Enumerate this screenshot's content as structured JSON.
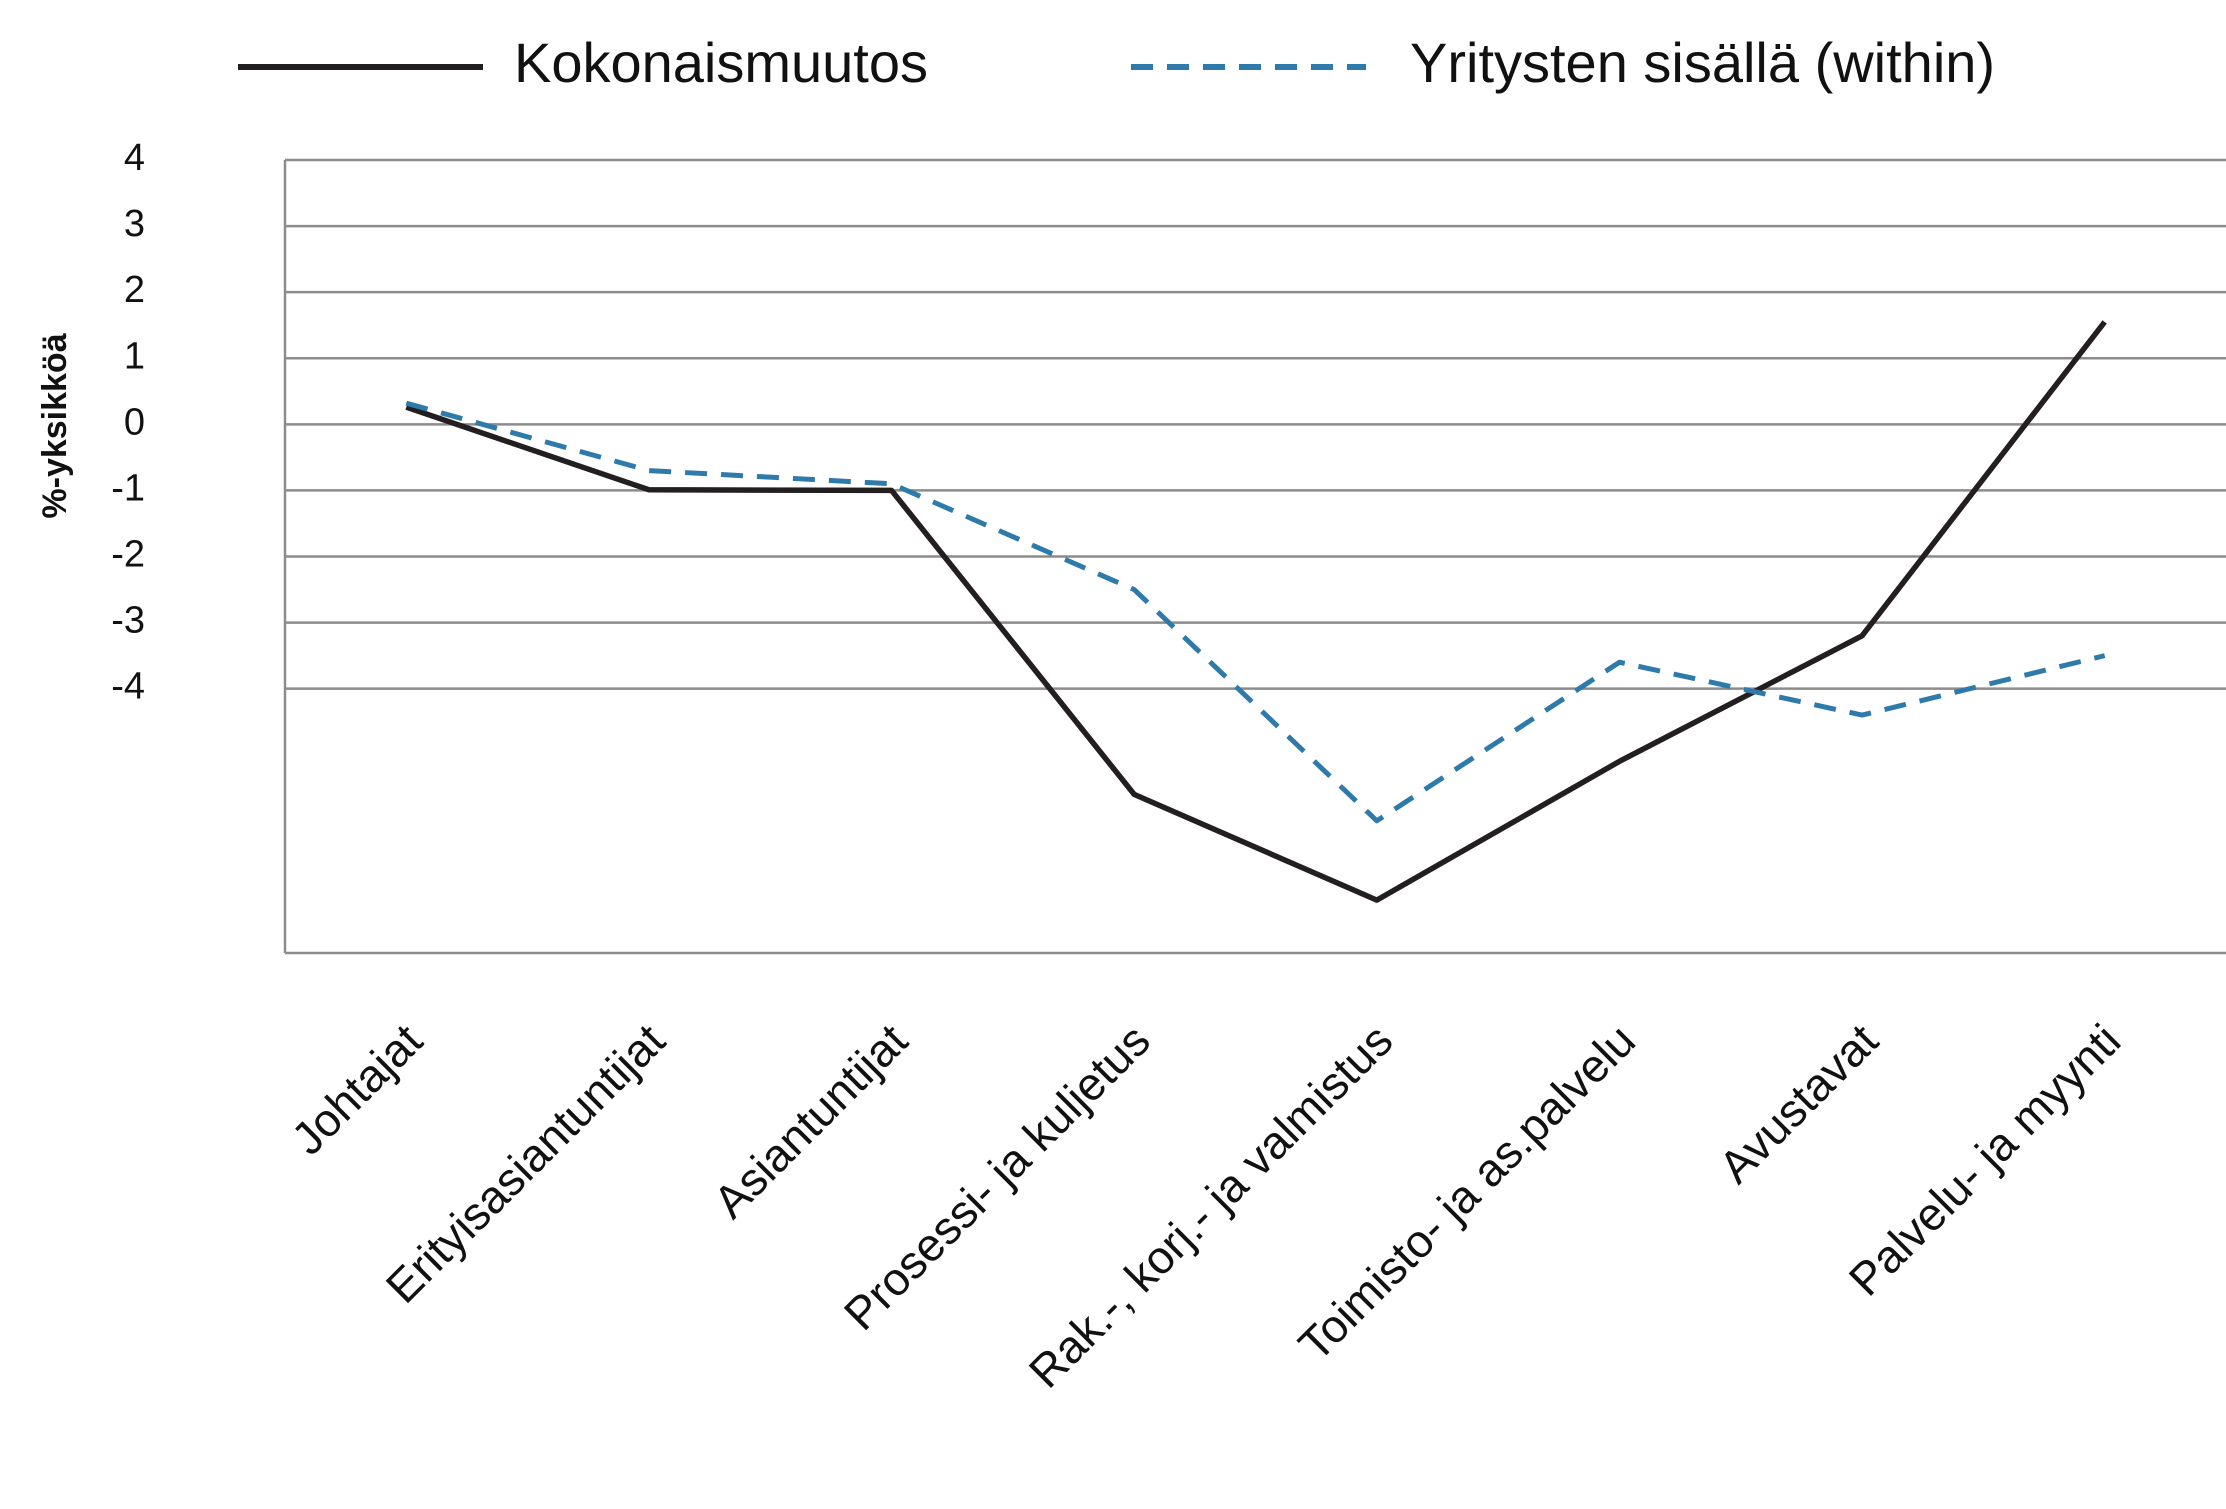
{
  "chart_data": {
    "type": "line",
    "y_label": "%-yksikköä",
    "categories": [
      "Johtajat",
      "Erityisasiantuntijat",
      "Asiantuntijat",
      "Prosessi- ja kuljetus",
      "Rak.-, korj.- ja valmistus",
      "Toimisto- ja as.palvelu",
      "Avustavat",
      "Palvelu- ja myynti"
    ],
    "series": [
      {
        "name": "Kokonaismuutos",
        "color": "#231f20",
        "dash": false,
        "values": [
          0.26,
          -0.99,
          -1.0,
          -5.6,
          -7.2,
          -5.1,
          -3.2,
          1.55
        ]
      },
      {
        "name": "Yritysten sisällä (within)",
        "color": "#2e7bab",
        "dash": true,
        "values": [
          0.32,
          -0.7,
          -0.9,
          -2.5,
          -6.0,
          -3.6,
          -4.4,
          -3.5
        ]
      }
    ],
    "ylim": [
      -8,
      4
    ],
    "yticks": [
      4,
      3,
      2,
      1,
      0,
      -1,
      -2,
      -3,
      -4
    ],
    "grid": true
  }
}
